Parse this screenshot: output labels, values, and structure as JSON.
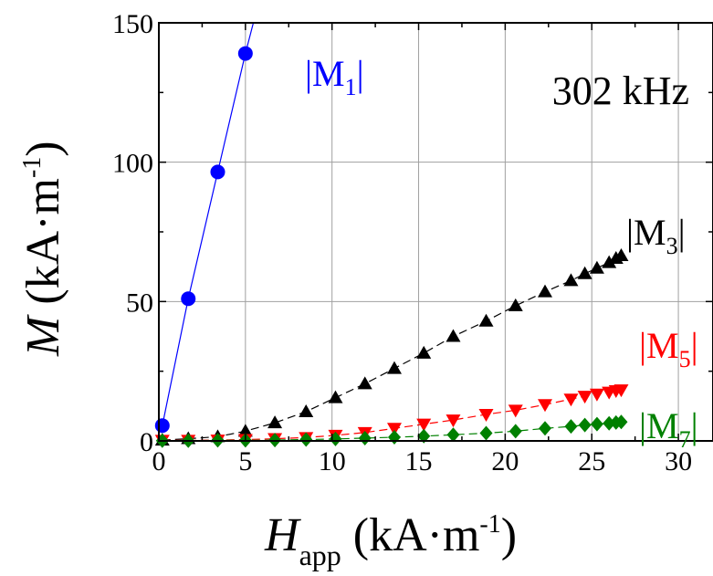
{
  "chart_data": {
    "type": "scatter",
    "annotation": "302 kHz",
    "xlabel": {
      "main": "H",
      "sub": "app",
      "unit_open": " (kA·m",
      "unit_sup": "-1",
      "unit_close": ")"
    },
    "ylabel": {
      "main": "M",
      "unit_open": " (kA·m",
      "unit_sup": "-1",
      "unit_close": ")"
    },
    "xlim": [
      0,
      32
    ],
    "ylim": [
      0,
      150
    ],
    "x_ticks": [
      "0",
      "5",
      "10",
      "15",
      "20",
      "25",
      "30"
    ],
    "x_tick_values": [
      0,
      5,
      10,
      15,
      20,
      25,
      30
    ],
    "y_ticks": [
      "0",
      "50",
      "100",
      "150"
    ],
    "y_tick_values": [
      0,
      50,
      100,
      150
    ],
    "grid": true,
    "series": [
      {
        "name_main": "|M",
        "name_sub": "1",
        "name_end": "|",
        "color": "#0000ff",
        "marker": "circle",
        "x": [
          0.2,
          1.7,
          3.4,
          5.0
        ],
        "y": [
          5.5,
          51,
          96.5,
          139
        ],
        "line_to": [
          6.5,
          175
        ]
      },
      {
        "name_main": "|M",
        "name_sub": "3",
        "name_end": "|",
        "color": "#000000",
        "marker": "triangle-up",
        "x": [
          0.2,
          1.7,
          3.4,
          5.0,
          6.7,
          8.5,
          10.2,
          11.9,
          13.6,
          15.3,
          17.0,
          18.9,
          20.6,
          22.3,
          23.8,
          24.6,
          25.3,
          26.0,
          26.4,
          26.7
        ],
        "y": [
          0.3,
          0.8,
          1.5,
          3.5,
          6.5,
          10.5,
          15.5,
          20.5,
          26,
          31.5,
          37.5,
          43,
          48.5,
          53.5,
          57.5,
          60,
          62,
          64,
          65.5,
          66.5
        ]
      },
      {
        "name_main": "|M",
        "name_sub": "5",
        "name_end": "|",
        "color": "#ff0000",
        "marker": "triangle-down",
        "x": [
          0.2,
          1.7,
          3.4,
          5.0,
          6.7,
          8.5,
          10.2,
          11.9,
          13.6,
          15.3,
          17.0,
          18.9,
          20.6,
          22.3,
          23.8,
          24.6,
          25.3,
          26.0,
          26.4,
          26.7
        ],
        "y": [
          0.2,
          0.2,
          0.3,
          0.5,
          0.8,
          1.2,
          2,
          3,
          4.5,
          6,
          7.5,
          9.5,
          11,
          13,
          15,
          16,
          16.8,
          17.5,
          18,
          18.3
        ]
      },
      {
        "name_main": "|M",
        "name_sub": "7",
        "name_end": "|",
        "color": "#008000",
        "marker": "diamond",
        "x": [
          0.2,
          1.7,
          3.4,
          5.0,
          6.7,
          8.5,
          10.2,
          11.9,
          13.6,
          15.3,
          17.0,
          18.9,
          20.6,
          22.3,
          23.8,
          24.6,
          25.3,
          26.0,
          26.4,
          26.7
        ],
        "y": [
          0.1,
          0.1,
          0.2,
          0.2,
          0.3,
          0.5,
          0.7,
          1,
          1.3,
          1.7,
          2.2,
          2.8,
          3.5,
          4.5,
          5.2,
          5.7,
          6,
          6.3,
          6.6,
          6.8
        ]
      }
    ]
  }
}
